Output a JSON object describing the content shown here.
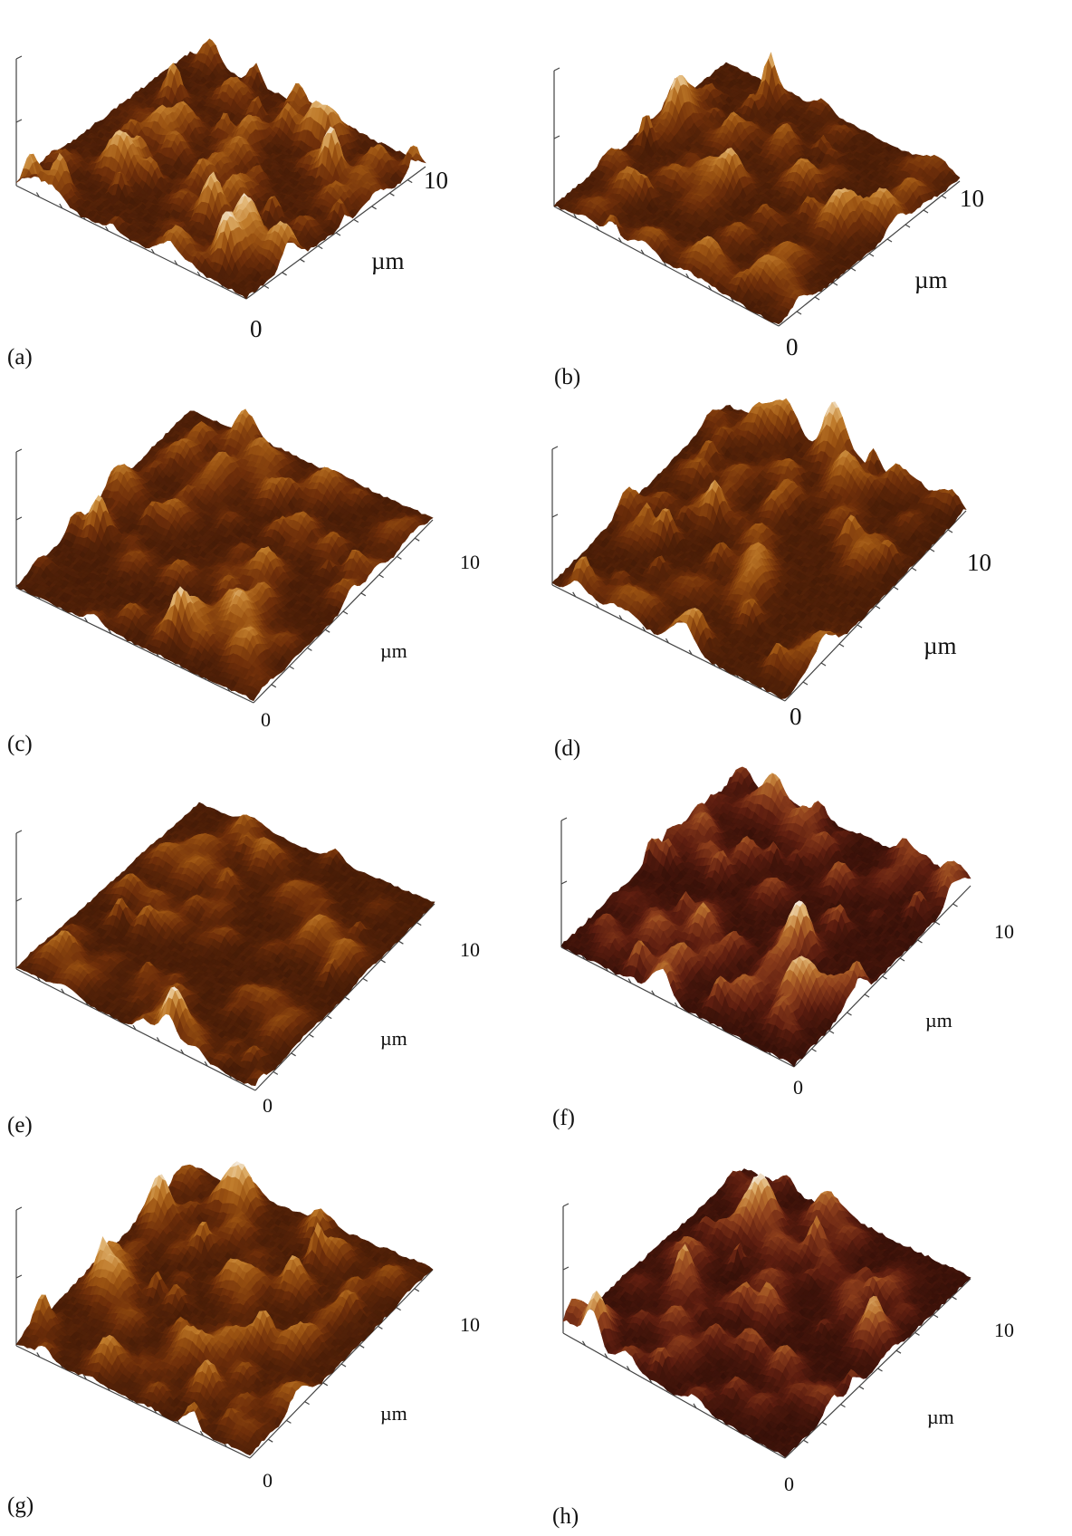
{
  "figure": {
    "panels": [
      {
        "id": "a",
        "letter": "(a)",
        "axis_max": "10",
        "axis_min": "0",
        "unit": "µm",
        "relief": 1.0,
        "seed": 11,
        "palette": "amber"
      },
      {
        "id": "b",
        "letter": "(b)",
        "axis_max": "10",
        "axis_min": "0",
        "unit": "µm",
        "relief": 0.9,
        "seed": 23,
        "palette": "amber"
      },
      {
        "id": "c",
        "letter": "(c)",
        "axis_max": "10",
        "axis_min": "0",
        "unit": "µm",
        "relief": 0.9,
        "seed": 37,
        "palette": "amber"
      },
      {
        "id": "d",
        "letter": "(d)",
        "axis_max": "10",
        "axis_min": "0",
        "unit": "µm",
        "relief": 0.95,
        "seed": 41,
        "palette": "amber"
      },
      {
        "id": "e",
        "letter": "(e)",
        "axis_max": "10",
        "axis_min": "0",
        "unit": "µm",
        "relief": 0.9,
        "seed": 53,
        "palette": "amber"
      },
      {
        "id": "f",
        "letter": "(f)",
        "axis_max": "10",
        "axis_min": "0",
        "unit": "µm",
        "relief": 1.05,
        "seed": 67,
        "palette": "rust"
      },
      {
        "id": "g",
        "letter": "(g)",
        "axis_max": "10",
        "axis_min": "0",
        "unit": "µm",
        "relief": 0.85,
        "seed": 79,
        "palette": "amber"
      },
      {
        "id": "h",
        "letter": "(h)",
        "axis_max": "10",
        "axis_min": "0",
        "unit": "µm",
        "relief": 1.05,
        "seed": 83,
        "palette": "rust"
      }
    ]
  },
  "colors": {
    "axis": "#444444",
    "amber": [
      "#3a1606",
      "#6e2e0a",
      "#9a5212",
      "#c07c2c",
      "#e1b472",
      "#f6efe4"
    ],
    "rust": [
      "#2a0c06",
      "#5e1e10",
      "#8e3f1c",
      "#b9712e",
      "#e0b270",
      "#f7f0e6"
    ]
  }
}
